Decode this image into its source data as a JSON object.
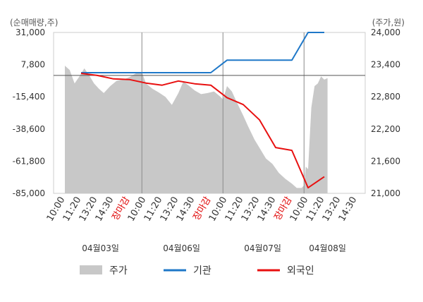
{
  "chart_data": {
    "type": "line",
    "left_axis": {
      "label": "(순매매량,주)",
      "ticks": [
        "31,000",
        "7,800",
        "-15,400",
        "-38,600",
        "-61,800",
        "-85,000"
      ],
      "min": -85000,
      "max": 31000
    },
    "right_axis": {
      "label": "(주가,원)",
      "ticks": [
        "24,000",
        "23,400",
        "22,800",
        "22,200",
        "21,600",
        "21,000"
      ],
      "min": 21000,
      "max": 24000
    },
    "x_ticks": [
      {
        "label": "10:00",
        "pos": 0,
        "red": false
      },
      {
        "label": "11:20",
        "pos": 1,
        "red": false
      },
      {
        "label": "13:20",
        "pos": 2,
        "red": false
      },
      {
        "label": "14:30",
        "pos": 3,
        "red": false
      },
      {
        "label": "장마감",
        "pos": 4,
        "red": true
      },
      {
        "label": "10:00",
        "pos": 5,
        "red": false
      },
      {
        "label": "11:20",
        "pos": 6,
        "red": false
      },
      {
        "label": "13:20",
        "pos": 7,
        "red": false
      },
      {
        "label": "14:30",
        "pos": 8,
        "red": false
      },
      {
        "label": "장마감",
        "pos": 9,
        "red": true
      },
      {
        "label": "10:00",
        "pos": 10,
        "red": false
      },
      {
        "label": "11:20",
        "pos": 11,
        "red": false
      },
      {
        "label": "13:20",
        "pos": 12,
        "red": false
      },
      {
        "label": "14:30",
        "pos": 13,
        "red": false
      },
      {
        "label": "장마감",
        "pos": 14,
        "red": true
      },
      {
        "label": "10:00",
        "pos": 15,
        "red": false
      },
      {
        "label": "11:20",
        "pos": 16,
        "red": false
      },
      {
        "label": "13:20",
        "pos": 17,
        "red": false
      },
      {
        "label": "14:30",
        "pos": 18,
        "red": false
      }
    ],
    "day_separators": [
      4.75,
      9.75,
      14.75
    ],
    "dates": [
      {
        "label": "04월03일",
        "pos": 2.2
      },
      {
        "label": "04월06일",
        "pos": 7.2
      },
      {
        "label": "04월07일",
        "pos": 12.2
      },
      {
        "label": "04월08일",
        "pos": 16.2
      }
    ],
    "series": [
      {
        "name": "주가",
        "type": "area",
        "color": "#c8c8c8",
        "axis": "right",
        "points": [
          [
            0,
            23380
          ],
          [
            0.3,
            23300
          ],
          [
            0.6,
            23050
          ],
          [
            0.9,
            23180
          ],
          [
            1.2,
            23330
          ],
          [
            1.5,
            23200
          ],
          [
            1.8,
            23050
          ],
          [
            2.1,
            22950
          ],
          [
            2.4,
            22870
          ],
          [
            2.8,
            23000
          ],
          [
            3.2,
            23100
          ],
          [
            3.6,
            23120
          ],
          [
            4.0,
            23170
          ],
          [
            4.4,
            23240
          ],
          [
            4.75,
            23260
          ],
          [
            5.0,
            23050
          ],
          [
            5.4,
            22950
          ],
          [
            5.8,
            22880
          ],
          [
            6.2,
            22800
          ],
          [
            6.6,
            22650
          ],
          [
            7.0,
            22870
          ],
          [
            7.3,
            23080
          ],
          [
            7.6,
            23020
          ],
          [
            8.0,
            22920
          ],
          [
            8.4,
            22850
          ],
          [
            8.8,
            22870
          ],
          [
            9.2,
            22900
          ],
          [
            9.6,
            22800
          ],
          [
            9.75,
            22750
          ],
          [
            10.0,
            23000
          ],
          [
            10.3,
            22900
          ],
          [
            10.6,
            22700
          ],
          [
            11.0,
            22450
          ],
          [
            11.3,
            22250
          ],
          [
            11.7,
            22000
          ],
          [
            12.0,
            21850
          ],
          [
            12.4,
            21650
          ],
          [
            12.8,
            21550
          ],
          [
            13.2,
            21380
          ],
          [
            13.6,
            21270
          ],
          [
            14.0,
            21180
          ],
          [
            14.3,
            21100
          ],
          [
            14.6,
            21100
          ],
          [
            14.75,
            21150
          ],
          [
            14.85,
            21500
          ],
          [
            15.0,
            21450
          ],
          [
            15.2,
            22600
          ],
          [
            15.4,
            23000
          ],
          [
            15.6,
            23050
          ],
          [
            15.8,
            23180
          ],
          [
            16.0,
            23120
          ],
          [
            16.2,
            23150
          ]
        ]
      },
      {
        "name": "기관",
        "type": "line",
        "color": "#1f78c8",
        "axis": "left",
        "points": [
          [
            1,
            2000
          ],
          [
            3,
            2000
          ],
          [
            5,
            2000
          ],
          [
            7,
            2000
          ],
          [
            9,
            2000
          ],
          [
            10,
            11000
          ],
          [
            12,
            11000
          ],
          [
            14,
            11000
          ],
          [
            15,
            31000
          ],
          [
            16,
            31000
          ]
        ]
      },
      {
        "name": "외국인",
        "type": "line",
        "color": "#e81010",
        "axis": "left",
        "points": [
          [
            1,
            1500
          ],
          [
            2,
            0
          ],
          [
            3,
            -2500
          ],
          [
            4,
            -3000
          ],
          [
            5,
            -5500
          ],
          [
            6,
            -7000
          ],
          [
            7,
            -4000
          ],
          [
            8,
            -6000
          ],
          [
            9,
            -7000
          ],
          [
            10,
            -16000
          ],
          [
            11,
            -21000
          ],
          [
            12,
            -32000
          ],
          [
            13,
            -52000
          ],
          [
            14,
            -54000
          ],
          [
            15,
            -81000
          ],
          [
            16,
            -73000
          ]
        ]
      }
    ],
    "legend": [
      "주가",
      "기관",
      "외국인"
    ]
  }
}
